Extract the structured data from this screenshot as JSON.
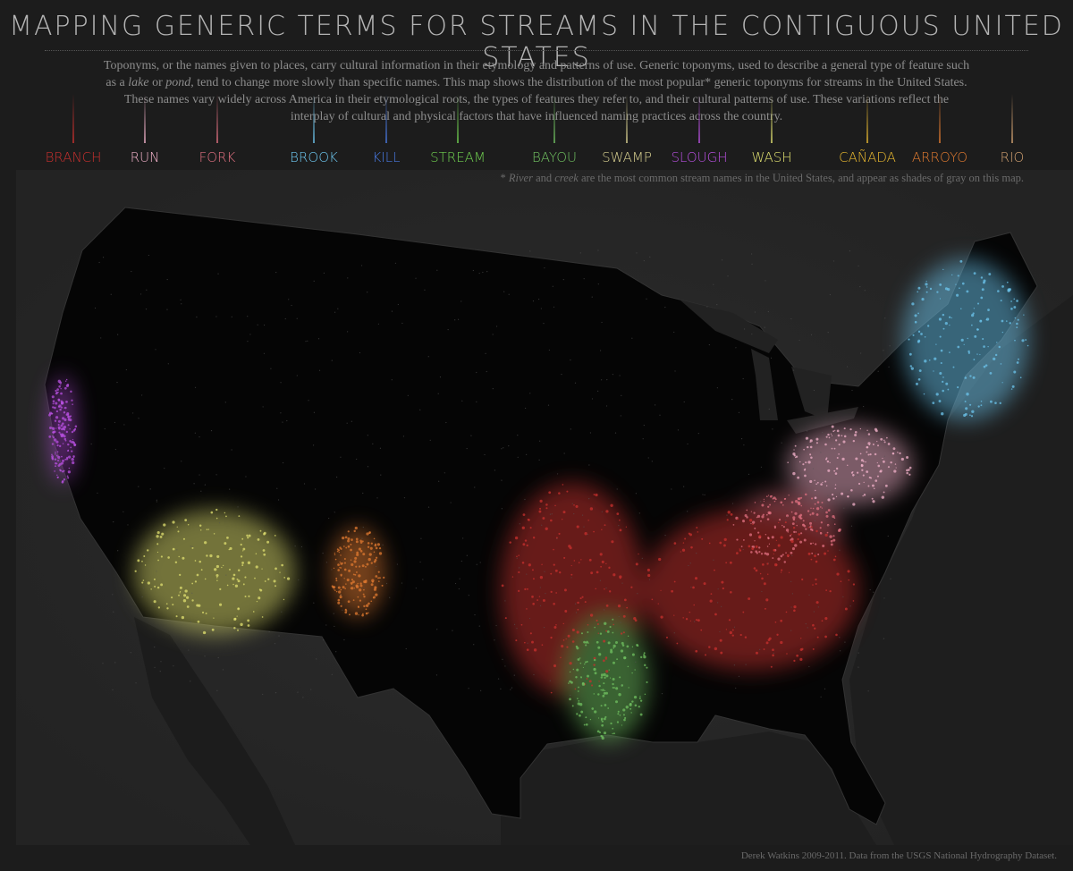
{
  "title": "MAPPING GENERIC TERMS FOR STREAMS IN THE CONTIGUOUS UNITED STATES",
  "intro": [
    "Toponyms, or the names given to places, carry cultural information in their etymology and patterns of use. Generic toponyms, used to describe a general type of feature such as a ",
    "lake",
    " or ",
    "pond",
    ", tend to change more slowly than specific names. This map shows the distribution of the most popular* generic toponyms for streams in the United States. These names vary widely across America in their etymological roots, the types of features they refer to, and their cultural patterns of use. These variations reflect the interplay of cultural and physical factors that have influenced naming practices across the country."
  ],
  "legend": [
    {
      "name": "BRANCH",
      "color": "#c8302e"
    },
    {
      "name": "RUN",
      "color": "#f0b0c8"
    },
    {
      "name": "FORK",
      "color": "#e07080"
    },
    {
      "name": "BROOK",
      "color": "#6cc4ec"
    },
    {
      "name": "KILL",
      "color": "#4878e0"
    },
    {
      "name": "STREAM",
      "color": "#70d050"
    },
    {
      "name": "BAYOU",
      "color": "#70c060"
    },
    {
      "name": "SWAMP",
      "color": "#d8d090"
    },
    {
      "name": "SLOUGH",
      "color": "#b850e0"
    },
    {
      "name": "WASH",
      "color": "#e0e070"
    },
    {
      "name": "CAÑADA",
      "color": "#e8b830"
    },
    {
      "name": "ARROYO",
      "color": "#e07a30"
    },
    {
      "name": "RIO",
      "color": "#d0a070"
    }
  ],
  "footnote": [
    "* ",
    "River",
    " and ",
    "creek",
    " are the most common stream names in the United States, and appear as shades of gray on this map."
  ],
  "credit": "Derek Watkins 2009-2011. Data from the USGS National Hydrography Dataset."
}
